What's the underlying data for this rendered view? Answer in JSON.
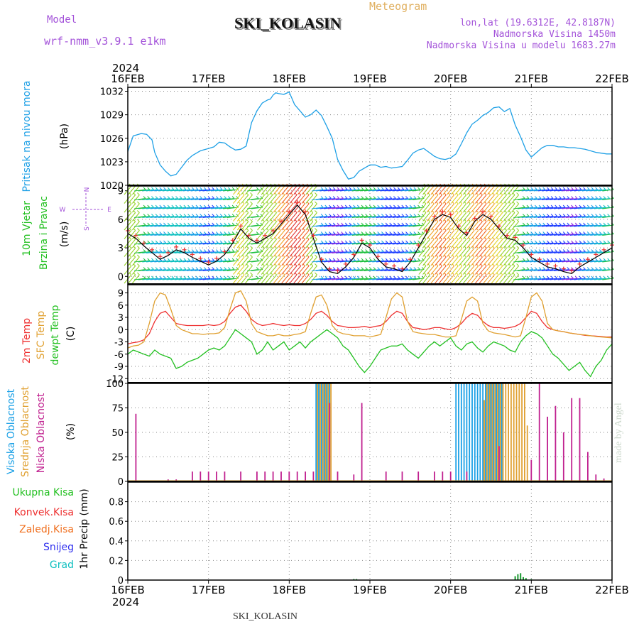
{
  "header": {
    "model_label": "Model",
    "model_name": "wrf-nmm_v3.9.1 e1km",
    "station": "SKI_KOLASIN",
    "meteogram": "Meteogram",
    "lonlat": "lon,lat (19.6312E, 42.8187N)",
    "elevation": "Nadmorska Visina 1450m",
    "model_elevation": "Nadmorska Visina u modelu 1683.27m",
    "footer_station": "SKI_KOLASIN",
    "watermark": "made by Angel",
    "year": "2024"
  },
  "colors": {
    "pressure": "#1ea0e6",
    "temp2m": "#ee3030",
    "sfc": "#e0a030",
    "dewpt": "#22c020",
    "high_cloud": "#1aa0e6",
    "mid_cloud": "#e0a030",
    "low_cloud": "#c0208f",
    "total_precip": "#1a9a30"
  },
  "time_axis": {
    "days": [
      "16FEB",
      "17FEB",
      "18FEB",
      "19FEB",
      "20FEB",
      "21FEB",
      "22FEB"
    ]
  },
  "panels": {
    "pressure": {
      "label1": "Pritisak na nivou mora",
      "unit": "(hPa)",
      "ticks": [
        "1032",
        "1029",
        "1026",
        "1023",
        "1020"
      ]
    },
    "wind": {
      "label1": "10m Vjetar",
      "label2": "Brzina i Pravac",
      "unit": "(m/s)",
      "ticks": [
        "9",
        "6",
        "3",
        "0"
      ],
      "legend_w": "W",
      "legend_e": "E",
      "legend_n": "N",
      "legend_s": "S"
    },
    "temp": {
      "label1": "2m Temp",
      "label2": "SFC Temp",
      "label3": "dewpt Temp",
      "unit": "(C)",
      "ticks": [
        "9",
        "6",
        "3",
        "0",
        "-3",
        "-6",
        "-9",
        "-12"
      ]
    },
    "cloud": {
      "label1": "Visoka Oblacnost",
      "label2": "Srednja Oblacnost",
      "label3": "Niska Oblacnost",
      "unit": "(%)",
      "ticks": [
        "100",
        "75",
        "50",
        "25",
        "0"
      ]
    },
    "precip": {
      "label1": "Ukupna Kisa",
      "label2": "Konvek.Kisa",
      "label3": "Zaledj.Kisa",
      "label4": "Snijeg",
      "label5": "Grad",
      "unit": "1hr Precip (mm)",
      "ticks": [
        "0.8",
        "0.6",
        "0.4",
        "0.2",
        "0"
      ]
    }
  },
  "chart_data": [
    {
      "type": "line",
      "ylabel": "(hPa)",
      "ylim": [
        1020,
        1032.5
      ],
      "x": [
        0,
        4,
        8,
        10,
        14,
        18,
        20,
        24,
        28,
        32,
        36,
        40,
        44,
        48,
        52,
        54,
        56,
        58,
        60,
        64,
        68,
        72,
        76,
        80,
        84,
        88,
        90,
        92,
        96,
        100,
        104,
        106,
        108,
        110,
        112,
        116,
        120,
        124,
        128,
        132,
        136,
        140,
        144,
        148,
        152,
        156,
        160,
        164,
        168,
        172,
        176,
        180,
        184,
        188,
        192,
        196,
        200,
        204,
        208,
        212,
        216,
        220,
        224,
        228,
        232,
        236,
        240,
        244,
        248,
        252,
        256,
        260,
        264,
        268,
        272,
        276,
        280,
        284,
        288,
        292,
        296,
        300,
        304,
        308,
        312,
        316,
        320,
        324,
        328,
        332,
        336,
        340,
        344,
        348,
        352,
        356,
        360
      ],
      "series": [
        {
          "values": [
            1024.3,
            1026.3,
            1026.5,
            1026.6,
            1026.5,
            1025.8,
            1024.2,
            1022.6,
            1021.8,
            1021.2,
            1021.4,
            1022.3,
            1023.2,
            1023.8,
            1024.2,
            1024.4,
            1024.5,
            1024.6,
            1024.7,
            1024.9,
            1025.5,
            1025.4,
            1024.9,
            1024.5,
            1024.6,
            1025.0,
            1026.5,
            1028.0,
            1029.5,
            1030.5,
            1030.9,
            1031.0,
            1031.5,
            1031.8,
            1031.7,
            1031.6,
            1031.9,
            1030.3,
            1029.5,
            1028.7,
            1029.0,
            1029.6,
            1028.9,
            1027.5,
            1026.0,
            1023.3,
            1021.9,
            1020.8,
            1021.0,
            1021.8,
            1022.2,
            1022.6,
            1022.6,
            1022.3,
            1022.4,
            1022.2,
            1022.3,
            1022.4,
            1023.2,
            1024.1,
            1024.5,
            1024.7,
            1024.2,
            1023.7,
            1023.4,
            1023.3,
            1023.5,
            1024.0,
            1025.3,
            1026.7,
            1027.8,
            1028.3,
            1028.9,
            1029.3,
            1029.9,
            1030.0,
            1029.4,
            1029.8,
            1027.7,
            1026.2,
            1024.5,
            1023.6,
            1024.2,
            1024.8,
            1025.1,
            1025.1,
            1024.9,
            1024.9,
            1024.8,
            1024.8,
            1024.7,
            1024.6,
            1024.4,
            1024.2,
            1024.1,
            1024.0,
            1024.0
          ]
        }
      ]
    },
    {
      "type": "line",
      "ylabel": "(m/s)",
      "ylim": [
        -0.8,
        9.5
      ],
      "x": [
        0,
        6,
        12,
        18,
        24,
        30,
        36,
        42,
        48,
        54,
        60,
        66,
        72,
        78,
        84,
        90,
        96,
        102,
        108,
        114,
        120,
        126,
        132,
        138,
        144,
        150,
        156,
        162,
        168,
        174,
        180,
        186,
        192,
        198,
        204,
        210,
        216,
        222,
        228,
        234,
        240,
        246,
        252,
        258,
        264,
        270,
        276,
        282,
        288,
        294,
        300,
        306,
        312,
        318,
        324,
        330,
        336,
        342,
        348,
        354,
        360
      ],
      "series": [
        {
          "values": [
            4.5,
            4.0,
            3.2,
            2.5,
            1.8,
            2.2,
            2.8,
            2.5,
            2.0,
            1.6,
            1.2,
            1.6,
            2.3,
            3.5,
            5.0,
            4.0,
            3.5,
            4.0,
            4.5,
            5.5,
            6.5,
            7.5,
            6.5,
            4.0,
            1.5,
            0.5,
            0.3,
            1.0,
            2.0,
            3.5,
            3.0,
            1.8,
            1.0,
            0.8,
            0.5,
            1.5,
            3.0,
            4.5,
            6.0,
            6.5,
            6.2,
            5.0,
            4.3,
            5.8,
            6.5,
            6.0,
            5.0,
            4.0,
            3.8,
            3.0,
            2.0,
            1.5,
            1.0,
            0.8,
            0.5,
            0.3,
            1.0,
            1.5,
            2.0,
            2.5,
            3.0
          ]
        }
      ]
    },
    {
      "type": "line",
      "ylabel": "(C)",
      "ylim": [
        -13,
        11
      ],
      "x": [
        0,
        4,
        8,
        12,
        16,
        20,
        24,
        28,
        32,
        36,
        40,
        44,
        48,
        52,
        56,
        60,
        64,
        68,
        72,
        76,
        80,
        84,
        88,
        92,
        96,
        100,
        104,
        108,
        112,
        116,
        120,
        124,
        128,
        132,
        136,
        140,
        144,
        148,
        152,
        156,
        160,
        164,
        168,
        172,
        176,
        180,
        184,
        188,
        192,
        196,
        200,
        204,
        208,
        212,
        216,
        220,
        224,
        228,
        232,
        236,
        240,
        244,
        248,
        252,
        256,
        260,
        264,
        268,
        272,
        276,
        280,
        284,
        288,
        292,
        296,
        300,
        304,
        308,
        312,
        316,
        320,
        324,
        328,
        332,
        336,
        340,
        344,
        348,
        352,
        356,
        360
      ],
      "series": [
        {
          "name": "2m Temp",
          "values": [
            -3.5,
            -3.2,
            -3.0,
            -2.5,
            -1.0,
            2.0,
            4.0,
            4.5,
            3.0,
            1.5,
            1.2,
            1.0,
            1.0,
            1.0,
            1.0,
            1.2,
            1.0,
            1.2,
            2.0,
            4.0,
            5.5,
            6.0,
            4.5,
            2.5,
            1.5,
            1.0,
            1.2,
            1.5,
            1.2,
            1.0,
            1.2,
            1.0,
            1.0,
            1.5,
            2.5,
            4.0,
            4.5,
            3.5,
            2.0,
            1.0,
            0.8,
            0.5,
            0.5,
            0.6,
            0.8,
            0.5,
            0.8,
            1.0,
            2.0,
            3.5,
            4.5,
            4.0,
            2.0,
            0.5,
            0.3,
            0.0,
            0.2,
            0.5,
            0.5,
            0.2,
            0.0,
            0.5,
            1.5,
            3.0,
            4.0,
            3.5,
            2.0,
            1.0,
            0.5,
            0.5,
            0.3,
            0.5,
            0.8,
            1.5,
            3.0,
            4.5,
            4.0,
            2.0,
            0.5,
            0.0,
            -0.3,
            -0.5,
            -0.8,
            -1.0,
            -1.2,
            -1.4,
            -1.5,
            -1.6,
            -1.7,
            -1.8,
            -1.8
          ]
        },
        {
          "name": "SFC Temp",
          "values": [
            -4.5,
            -4.0,
            -3.8,
            -3.0,
            1.5,
            7.0,
            9.0,
            8.5,
            5.0,
            1.0,
            0.0,
            -0.5,
            -1.0,
            -1.0,
            -1.2,
            -1.0,
            -1.0,
            -0.8,
            0.5,
            5.0,
            9.0,
            9.5,
            7.0,
            1.5,
            -0.5,
            -1.0,
            -1.5,
            -1.5,
            -1.2,
            -1.5,
            -1.5,
            -1.2,
            -1.0,
            -0.5,
            4.0,
            8.0,
            8.5,
            6.0,
            1.0,
            -0.5,
            -1.0,
            -1.2,
            -1.5,
            -1.5,
            -1.5,
            -1.8,
            -1.5,
            -1.2,
            3.0,
            7.5,
            9.0,
            8.0,
            2.0,
            -0.5,
            -0.8,
            -1.0,
            -1.2,
            -1.2,
            -1.5,
            -1.8,
            -1.8,
            -1.5,
            2.5,
            7.0,
            8.0,
            7.0,
            1.5,
            -0.3,
            -0.8,
            -1.0,
            -1.2,
            -1.5,
            -1.8,
            -1.5,
            3.0,
            8.0,
            9.0,
            7.0,
            1.5,
            0.0,
            -0.3,
            -0.5,
            -0.8,
            -1.0,
            -1.2,
            -1.3,
            -1.5,
            -1.7,
            -1.8,
            -1.9,
            -2.0
          ]
        },
        {
          "name": "dewpt Temp",
          "values": [
            -6.0,
            -5.0,
            -5.5,
            -6.0,
            -6.5,
            -5.0,
            -6.0,
            -6.5,
            -7.0,
            -9.5,
            -9.0,
            -8.0,
            -7.5,
            -7.0,
            -6.0,
            -5.0,
            -4.5,
            -5.0,
            -4.0,
            -2.0,
            0.0,
            -1.0,
            -2.0,
            -3.0,
            -6.0,
            -5.0,
            -3.0,
            -5.0,
            -4.0,
            -3.0,
            -5.0,
            -4.0,
            -3.0,
            -4.5,
            -3.0,
            -2.0,
            -1.0,
            0.0,
            -1.0,
            -2.0,
            -4.0,
            -5.0,
            -7.0,
            -9.0,
            -10.5,
            -9.0,
            -7.0,
            -5.0,
            -4.5,
            -4.0,
            -4.0,
            -3.5,
            -5.0,
            -6.0,
            -7.0,
            -5.5,
            -4.0,
            -3.0,
            -4.0,
            -3.0,
            -2.0,
            -4.0,
            -5.0,
            -3.5,
            -3.0,
            -4.5,
            -5.5,
            -4.0,
            -3.0,
            -3.5,
            -4.0,
            -5.0,
            -5.5,
            -3.0,
            -1.5,
            -0.5,
            -1.0,
            -2.0,
            -4.0,
            -6.0,
            -7.0,
            -8.5,
            -10.0,
            -9.0,
            -8.0,
            -10.0,
            -11.5,
            -9.0,
            -7.5,
            -5.0,
            -3.5
          ]
        }
      ]
    },
    {
      "type": "bar",
      "ylabel": "(%)",
      "ylim": [
        0,
        100
      ],
      "series": [
        {
          "name": "Visoka Oblacnost",
          "x": [
            140,
            142,
            144,
            146,
            148,
            150,
            244,
            246,
            248,
            250,
            252,
            254,
            256,
            258,
            260,
            262,
            264,
            266,
            268,
            270,
            272,
            274,
            276,
            278
          ],
          "values": [
            100,
            100,
            100,
            100,
            100,
            100,
            100,
            100,
            100,
            100,
            100,
            100,
            100,
            100,
            100,
            100,
            100,
            100,
            100,
            100,
            100,
            100,
            100,
            100
          ]
        },
        {
          "name": "Srednja Oblacnost",
          "x": [
            141,
            143,
            145,
            147,
            149,
            151,
            265,
            267,
            269,
            271,
            273,
            275,
            277,
            279,
            281,
            283,
            285,
            287,
            289,
            291,
            293,
            295,
            297
          ],
          "values": [
            100,
            100,
            100,
            100,
            100,
            100,
            83,
            100,
            100,
            100,
            100,
            100,
            100,
            100,
            100,
            100,
            100,
            100,
            100,
            100,
            100,
            100,
            57
          ]
        },
        {
          "name": "Niska Oblacnost",
          "x": [
            6,
            30,
            36,
            48,
            54,
            60,
            66,
            72,
            84,
            96,
            102,
            108,
            114,
            120,
            126,
            132,
            138,
            150,
            156,
            168,
            174,
            192,
            204,
            216,
            228,
            234,
            240,
            252,
            276,
            300,
            306,
            312,
            318,
            324,
            330,
            336,
            342,
            348,
            354
          ],
          "values": [
            69,
            2,
            2,
            10,
            10,
            10,
            10,
            10,
            10,
            10,
            10,
            10,
            10,
            10,
            10,
            10,
            10,
            80,
            10,
            7,
            80,
            10,
            10,
            10,
            10,
            10,
            10,
            10,
            36,
            22,
            100,
            66,
            77,
            50,
            85,
            85,
            30,
            7,
            3
          ]
        }
      ]
    },
    {
      "type": "bar",
      "ylabel": "1hr Precip (mm)",
      "ylim": [
        0,
        1.0
      ],
      "series": [
        {
          "name": "Ukupna Kisa",
          "x": [
            168,
            170,
            288,
            290,
            292,
            294,
            296,
            300
          ],
          "values": [
            0.01,
            0.01,
            0.04,
            0.06,
            0.07,
            0.03,
            0.02,
            0.01
          ]
        }
      ]
    }
  ]
}
